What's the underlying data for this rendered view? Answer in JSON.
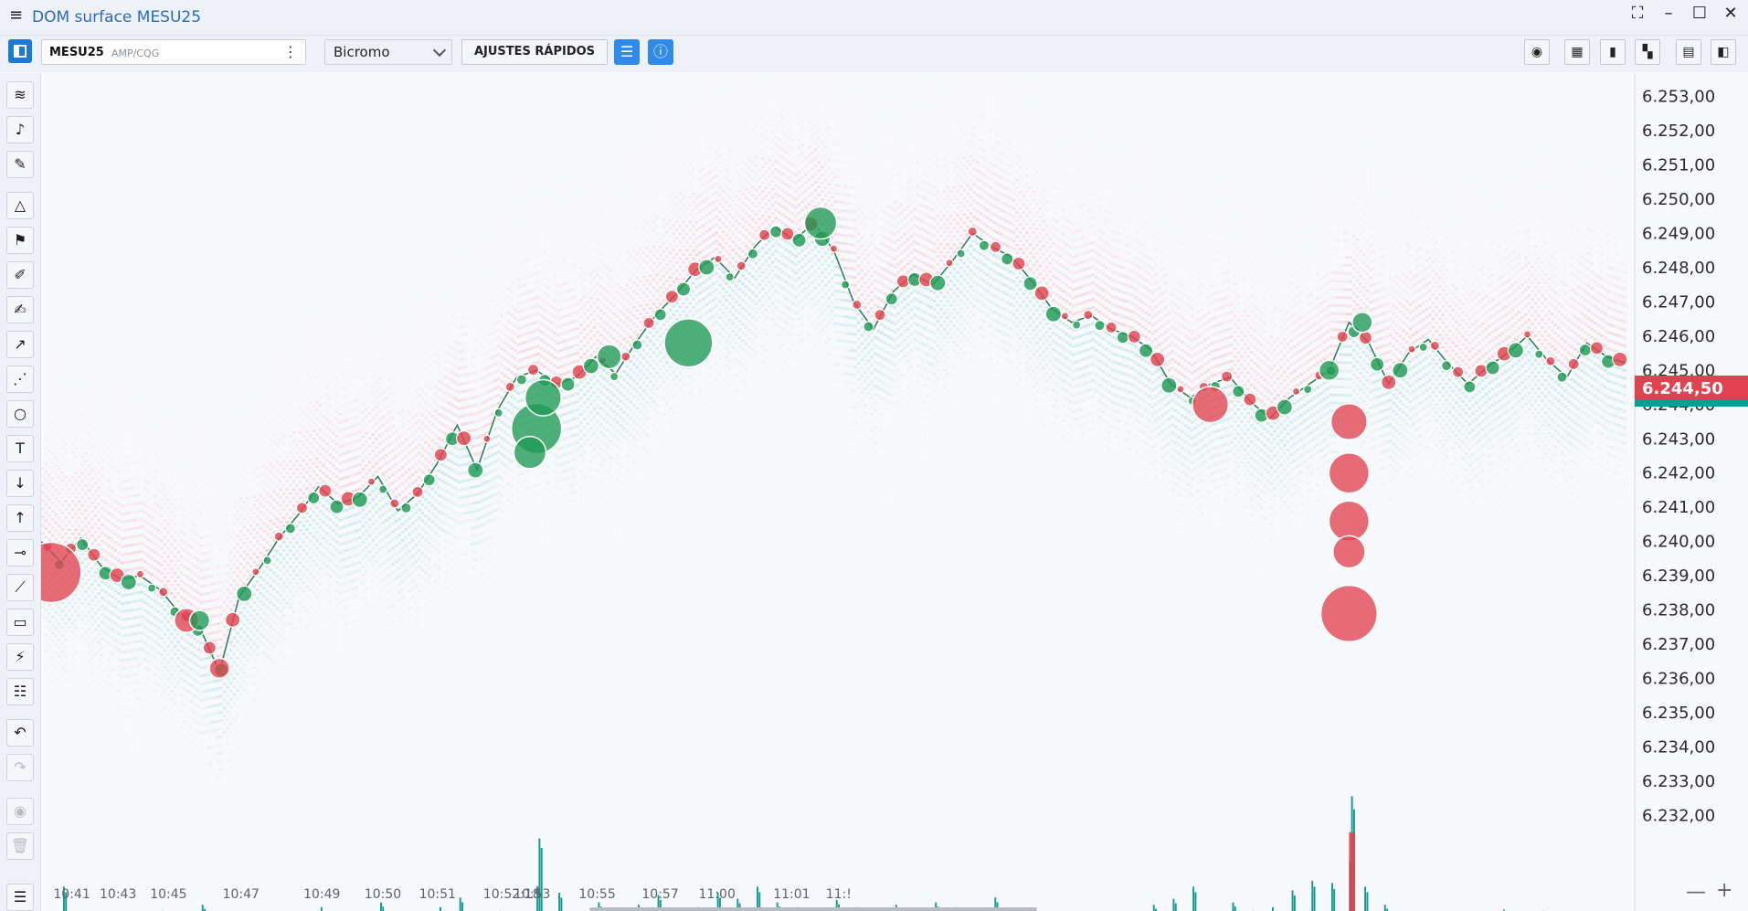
{
  "window": {
    "title": "DOM surface MESU25"
  },
  "toolbar": {
    "symbol": "MESU25",
    "source": "AMP/CQG",
    "mode": "Bicromo",
    "quick_settings": "AJUSTES RÁPIDOS"
  },
  "left_tools": [
    "layers-icon",
    "bell-icon",
    "pencil-ruler-icon",
    "triangle-icon",
    "flag-icon",
    "marker-icon",
    "brush-icon",
    "arrow-diagonal-icon",
    "polyline-icon",
    "circle-icon",
    "text-icon",
    "arrow-down-icon",
    "arrow-up-icon",
    "horizontal-line-icon",
    "trend-line-icon",
    "rectangle-icon",
    "fibonacci-icon",
    "template-icon",
    "undo-icon",
    "redo-icon",
    "eye-icon",
    "trash-icon",
    "list-icon"
  ],
  "price_axis": {
    "labels": [
      "6.253,00",
      "6.252,00",
      "6.251,00",
      "6.250,00",
      "6.249,00",
      "6.248,00",
      "6.247,00",
      "6.246,00",
      "6.245,00",
      "6.244,00",
      "6.243,00",
      "6.242,00",
      "6.241,00",
      "6.240,00",
      "6.239,00",
      "6.238,00",
      "6.237,00",
      "6.236,00",
      "6.235,00",
      "6.234,00",
      "6.233,00",
      "6.232,00"
    ],
    "current_price": "6.244,50",
    "current_color": "#e0434f"
  },
  "time_axis": {
    "labels": [
      "10:41",
      "10:43",
      "10:45",
      "10:47",
      "10:49",
      "10:50",
      "10:51",
      "10:52:18",
      "10:53",
      "10:55",
      "10:57",
      "11:00",
      "11:01",
      "11:!"
    ]
  },
  "colors": {
    "buy": "#1f9a55",
    "sell": "#e0434f",
    "volume": "#0f9a92",
    "bid": "#9fdad6",
    "ask": "#f3b8c0"
  },
  "chart_data": {
    "type": "scatter",
    "ylim": [
      6231.75,
      6253.25
    ],
    "price_path": [
      [
        0,
        6240.0
      ],
      [
        6,
        6239.4
      ],
      [
        12,
        6240.1
      ],
      [
        18,
        6239.3
      ],
      [
        24,
        6238.9
      ],
      [
        30,
        6239.0
      ],
      [
        36,
        6238.6
      ],
      [
        42,
        6237.9
      ],
      [
        48,
        6237.5
      ],
      [
        54,
        6236.2
      ],
      [
        60,
        6238.4
      ],
      [
        66,
        6239.2
      ],
      [
        72,
        6240.1
      ],
      [
        78,
        6240.8
      ],
      [
        84,
        6241.6
      ],
      [
        90,
        6241.1
      ],
      [
        96,
        6241.3
      ],
      [
        102,
        6241.9
      ],
      [
        108,
        6240.9
      ],
      [
        114,
        6241.4
      ],
      [
        120,
        6242.3
      ],
      [
        126,
        6243.4
      ],
      [
        132,
        6242.1
      ],
      [
        138,
        6243.8
      ],
      [
        144,
        6244.8
      ],
      [
        150,
        6245.0
      ],
      [
        156,
        6244.6
      ],
      [
        162,
        6244.8
      ],
      [
        168,
        6245.4
      ],
      [
        174,
        6244.9
      ],
      [
        180,
        6245.8
      ],
      [
        186,
        6246.6
      ],
      [
        192,
        6247.2
      ],
      [
        198,
        6247.9
      ],
      [
        204,
        6248.3
      ],
      [
        210,
        6247.7
      ],
      [
        216,
        6248.6
      ],
      [
        222,
        6249.2
      ],
      [
        228,
        6248.8
      ],
      [
        234,
        6249.3
      ],
      [
        240,
        6248.5
      ],
      [
        246,
        6247.0
      ],
      [
        252,
        6246.2
      ],
      [
        258,
        6247.3
      ],
      [
        264,
        6247.8
      ],
      [
        270,
        6247.5
      ],
      [
        276,
        6248.2
      ],
      [
        282,
        6249.0
      ],
      [
        288,
        6248.6
      ],
      [
        294,
        6248.3
      ],
      [
        300,
        6247.6
      ],
      [
        306,
        6246.8
      ],
      [
        312,
        6246.4
      ],
      [
        318,
        6246.6
      ],
      [
        324,
        6246.2
      ],
      [
        330,
        6246.0
      ],
      [
        336,
        6245.6
      ],
      [
        342,
        6244.6
      ],
      [
        348,
        6244.2
      ],
      [
        354,
        6244.6
      ],
      [
        360,
        6244.8
      ],
      [
        366,
        6244.1
      ],
      [
        372,
        6243.6
      ],
      [
        378,
        6244.2
      ],
      [
        384,
        6244.6
      ],
      [
        390,
        6245.0
      ],
      [
        396,
        6246.4
      ],
      [
        402,
        6245.8
      ],
      [
        408,
        6244.6
      ],
      [
        414,
        6245.5
      ],
      [
        420,
        6245.9
      ],
      [
        426,
        6245.2
      ],
      [
        432,
        6244.6
      ],
      [
        438,
        6245.1
      ],
      [
        444,
        6245.5
      ],
      [
        450,
        6246.0
      ],
      [
        456,
        6245.3
      ],
      [
        462,
        6244.8
      ],
      [
        468,
        6245.8
      ],
      [
        474,
        6245.4
      ],
      [
        480,
        6245.2
      ]
    ],
    "large_bubbles": [
      {
        "t": 3,
        "p": 6239.1,
        "side": "sell",
        "size": 3
      },
      {
        "t": 44,
        "p": 6237.7,
        "side": "sell",
        "size": 1.2
      },
      {
        "t": 48,
        "p": 6237.7,
        "side": "buy",
        "size": 1
      },
      {
        "t": 54,
        "p": 6236.3,
        "side": "sell",
        "size": 1
      },
      {
        "t": 150,
        "p": 6243.3,
        "side": "buy",
        "size": 2.5
      },
      {
        "t": 148,
        "p": 6242.6,
        "side": "buy",
        "size": 1.6
      },
      {
        "t": 152,
        "p": 6244.2,
        "side": "buy",
        "size": 1.8
      },
      {
        "t": 172,
        "p": 6245.4,
        "side": "buy",
        "size": 1.2
      },
      {
        "t": 196,
        "p": 6245.8,
        "side": "buy",
        "size": 2.4
      },
      {
        "t": 236,
        "p": 6249.3,
        "side": "buy",
        "size": 1.6
      },
      {
        "t": 354,
        "p": 6244.0,
        "side": "sell",
        "size": 1.8
      },
      {
        "t": 396,
        "p": 6243.5,
        "side": "sell",
        "size": 1.8
      },
      {
        "t": 396,
        "p": 6242.0,
        "side": "sell",
        "size": 2
      },
      {
        "t": 396,
        "p": 6240.6,
        "side": "sell",
        "size": 2
      },
      {
        "t": 396,
        "p": 6239.7,
        "side": "sell",
        "size": 1.6
      },
      {
        "t": 396,
        "p": 6237.9,
        "side": "sell",
        "size": 2.8
      },
      {
        "t": 400,
        "p": 6246.4,
        "side": "buy",
        "size": 1
      },
      {
        "t": 390,
        "p": 6245.0,
        "side": "buy",
        "size": 1
      }
    ],
    "volume": [
      [
        0,
        0.18,
        0.04
      ],
      [
        6,
        0.55,
        0.1
      ],
      [
        12,
        0.2,
        0.05
      ],
      [
        18,
        0.3,
        0.08
      ],
      [
        24,
        0.15,
        0.03
      ],
      [
        30,
        0.25,
        0.12
      ],
      [
        36,
        0.35,
        0.15
      ],
      [
        42,
        0.22,
        0.06
      ],
      [
        48,
        0.4,
        0.14
      ],
      [
        54,
        0.28,
        0.05
      ],
      [
        60,
        0.2,
        0.05
      ],
      [
        66,
        0.24,
        0.06
      ],
      [
        72,
        0.3,
        0.05
      ],
      [
        78,
        0.26,
        0.05
      ],
      [
        84,
        0.38,
        0.05
      ],
      [
        90,
        0.22,
        0.04
      ],
      [
        96,
        0.3,
        0.04
      ],
      [
        102,
        0.42,
        0.06
      ],
      [
        108,
        0.32,
        0.06
      ],
      [
        114,
        0.28,
        0.05
      ],
      [
        120,
        0.38,
        0.06
      ],
      [
        126,
        0.46,
        0.06
      ],
      [
        132,
        0.25,
        0.04
      ],
      [
        138,
        0.35,
        0.05
      ],
      [
        144,
        0.28,
        0.05
      ],
      [
        150,
        0.95,
        0.15
      ],
      [
        156,
        0.5,
        0.1
      ],
      [
        162,
        0.3,
        0.08
      ],
      [
        168,
        0.42,
        0.1
      ],
      [
        174,
        0.34,
        0.08
      ],
      [
        180,
        0.4,
        0.12
      ],
      [
        186,
        0.48,
        0.1
      ],
      [
        192,
        0.35,
        0.08
      ],
      [
        198,
        0.38,
        0.06
      ],
      [
        204,
        0.5,
        0.1
      ],
      [
        210,
        0.45,
        0.08
      ],
      [
        216,
        0.55,
        0.12
      ],
      [
        222,
        0.42,
        0.1
      ],
      [
        228,
        0.38,
        0.06
      ],
      [
        234,
        0.32,
        0.06
      ],
      [
        240,
        0.44,
        0.1
      ],
      [
        246,
        0.38,
        0.08
      ],
      [
        252,
        0.36,
        0.06
      ],
      [
        258,
        0.4,
        0.08
      ],
      [
        264,
        0.34,
        0.05
      ],
      [
        270,
        0.42,
        0.08
      ],
      [
        276,
        0.38,
        0.06
      ],
      [
        282,
        0.3,
        0.05
      ],
      [
        288,
        0.46,
        0.1
      ],
      [
        294,
        0.36,
        0.08
      ],
      [
        300,
        0.28,
        0.06
      ],
      [
        306,
        0.3,
        0.06
      ],
      [
        312,
        0.34,
        0.05
      ],
      [
        318,
        0.26,
        0.05
      ],
      [
        324,
        0.3,
        0.06
      ],
      [
        330,
        0.34,
        0.08
      ],
      [
        336,
        0.4,
        0.12
      ],
      [
        342,
        0.45,
        0.2
      ],
      [
        348,
        0.55,
        0.35
      ],
      [
        354,
        0.3,
        0.08
      ],
      [
        360,
        0.42,
        0.1
      ],
      [
        366,
        0.35,
        0.1
      ],
      [
        372,
        0.38,
        0.1
      ],
      [
        378,
        0.52,
        0.15
      ],
      [
        384,
        0.6,
        0.2
      ],
      [
        390,
        0.58,
        0.25
      ],
      [
        396,
        1.3,
        1.2
      ],
      [
        400,
        0.55,
        0.2
      ],
      [
        406,
        0.4,
        0.1
      ],
      [
        412,
        0.32,
        0.06
      ],
      [
        418,
        0.26,
        0.05
      ],
      [
        424,
        0.34,
        0.06
      ],
      [
        430,
        0.3,
        0.06
      ],
      [
        436,
        0.28,
        0.05
      ],
      [
        442,
        0.36,
        0.06
      ],
      [
        448,
        0.3,
        0.05
      ],
      [
        454,
        0.35,
        0.08
      ],
      [
        460,
        0.28,
        0.05
      ],
      [
        466,
        0.3,
        0.06
      ],
      [
        472,
        0.26,
        0.05
      ],
      [
        478,
        0.12,
        0.03
      ]
    ]
  }
}
